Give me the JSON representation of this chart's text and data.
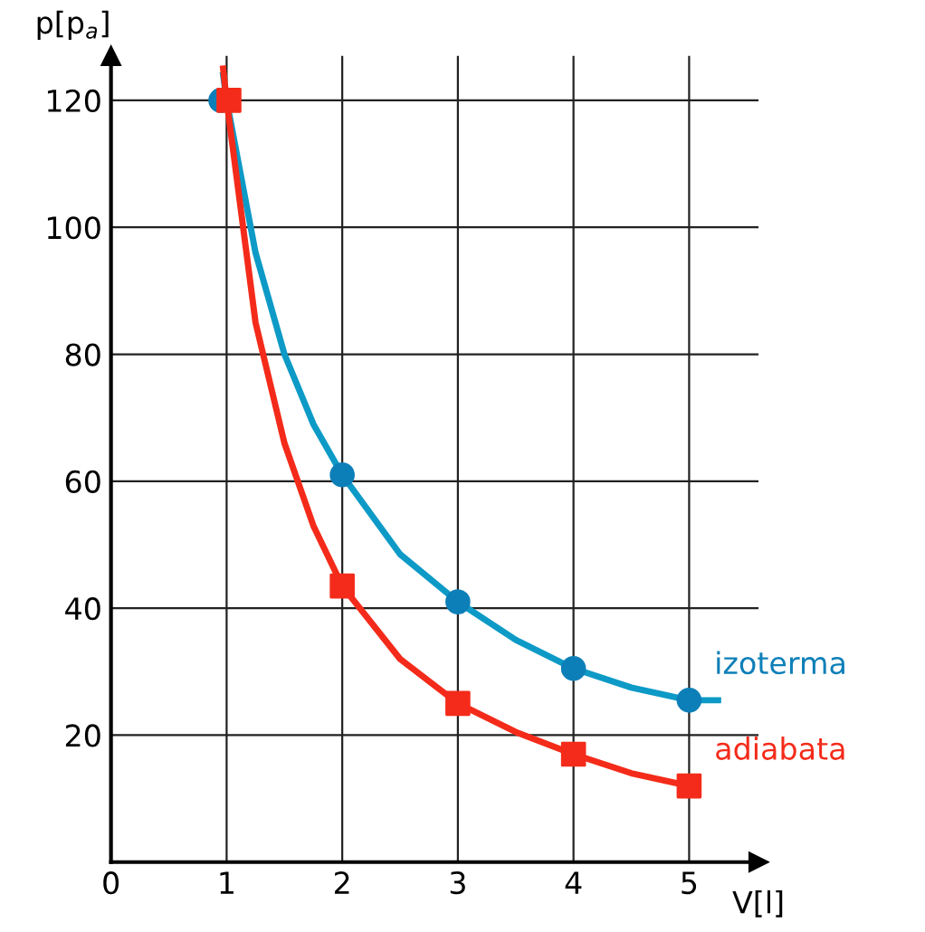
{
  "chart_data": {
    "type": "line",
    "xlabel": "V[l]",
    "ylabel": "p[p$_{a}$]",
    "xlim": [
      0,
      5.6
    ],
    "ylim": [
      0,
      127
    ],
    "xticks": [
      0,
      1,
      2,
      3,
      4,
      5
    ],
    "yticks": [
      20,
      40,
      60,
      80,
      100,
      120
    ],
    "grid": true,
    "legend": false,
    "series": [
      {
        "color": "#0d9ac6",
        "x": [
          0.97,
          1,
          1.25,
          1.5,
          1.75,
          2,
          2.5,
          3,
          3.5,
          4,
          4.5,
          5,
          5.25
        ],
        "values": [
          124,
          120,
          96,
          80,
          69,
          61,
          48.5,
          41,
          35,
          30.5,
          27.5,
          25.5,
          25.5
        ],
        "marker": "none"
      },
      {
        "color": "#f42b1a",
        "x": [
          0.97,
          1,
          1.25,
          1.5,
          1.75,
          2,
          2.5,
          3,
          3.5,
          4,
          4.5,
          5
        ],
        "values": [
          125,
          120,
          85,
          66,
          53,
          43.5,
          32,
          25,
          20.5,
          17,
          14,
          12
        ],
        "marker": "none"
      },
      {
        "type": "scatter",
        "name": "izoterma",
        "color": "#0d7fb8",
        "x": [
          0.95,
          2,
          3,
          4,
          5
        ],
        "values": [
          120,
          61,
          41,
          30.5,
          25.5
        ],
        "marker": "circle"
      },
      {
        "type": "scatter",
        "name": "adiabata",
        "color": "#f42b1a",
        "x": [
          1.02,
          2,
          3,
          4,
          5
        ],
        "values": [
          120,
          43.5,
          25,
          17,
          12
        ],
        "marker": "square"
      }
    ]
  }
}
